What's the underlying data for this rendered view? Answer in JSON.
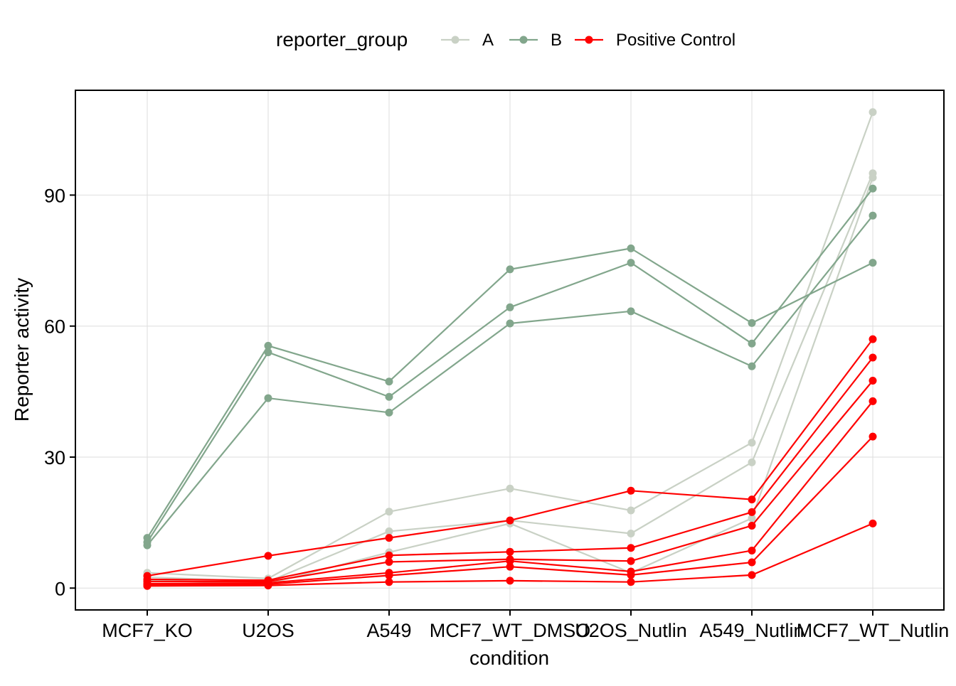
{
  "chart_data": {
    "type": "line",
    "xlabel": "condition",
    "ylabel": "Reporter activity",
    "categories": [
      "MCF7_KO",
      "U2OS",
      "A549",
      "MCF7_WT_DMSO",
      "U2OS_Nutlin",
      "A549_Nutlin",
      "MCF7_WT_Nutlin"
    ],
    "ylim": [
      -5,
      114
    ],
    "yticks": [
      0,
      30,
      60,
      90
    ],
    "grid": true,
    "legend": {
      "title": "reporter_group",
      "position": "top",
      "entries": [
        {
          "label": "A",
          "color": "#C9D1C5"
        },
        {
          "label": "B",
          "color": "#82A68C"
        },
        {
          "label": "Positive Control",
          "color": "#FF0000"
        }
      ]
    },
    "series": [
      {
        "name": "A",
        "group": "A",
        "color": "#C9D1C5",
        "values": [
          3.5,
          2.2,
          17.5,
          22.8,
          17.8,
          33.3,
          109.0
        ]
      },
      {
        "name": "A",
        "group": "A",
        "color": "#C9D1C5",
        "values": [
          2.5,
          1.5,
          13.0,
          15.5,
          12.5,
          28.8,
          95.0
        ]
      },
      {
        "name": "A",
        "group": "A",
        "color": "#C9D1C5",
        "values": [
          1.8,
          1.0,
          8.2,
          14.8,
          3.5,
          16.0,
          94.0
        ]
      },
      {
        "name": "B",
        "group": "B",
        "color": "#82A68C",
        "values": [
          11.5,
          55.5,
          47.3,
          73.0,
          77.8,
          60.7,
          74.5
        ]
      },
      {
        "name": "B",
        "group": "B",
        "color": "#82A68C",
        "values": [
          10.5,
          54.0,
          43.8,
          64.3,
          74.5,
          56.0,
          91.5
        ]
      },
      {
        "name": "B",
        "group": "B",
        "color": "#82A68C",
        "values": [
          9.8,
          43.5,
          40.2,
          60.6,
          63.4,
          50.8,
          85.3
        ]
      },
      {
        "name": "Positive Control",
        "group": "Positive Control",
        "color": "#FF0000",
        "values": [
          2.8,
          7.4,
          11.5,
          15.5,
          22.3,
          20.3,
          57.0
        ]
      },
      {
        "name": "Positive Control",
        "group": "Positive Control",
        "color": "#FF0000",
        "values": [
          2.0,
          1.8,
          7.5,
          8.3,
          9.2,
          17.4,
          52.8
        ]
      },
      {
        "name": "Positive Control",
        "group": "Positive Control",
        "color": "#FF0000",
        "values": [
          1.5,
          1.5,
          6.0,
          6.6,
          6.2,
          14.3,
          47.5
        ]
      },
      {
        "name": "Positive Control",
        "group": "Positive Control",
        "color": "#FF0000",
        "values": [
          1.0,
          1.2,
          3.5,
          6.2,
          3.8,
          8.6,
          42.8
        ]
      },
      {
        "name": "Positive Control",
        "group": "Positive Control",
        "color": "#FF0000",
        "values": [
          0.8,
          0.9,
          2.9,
          4.9,
          3.0,
          5.9,
          34.7
        ]
      },
      {
        "name": "Positive Control",
        "group": "Positive Control",
        "color": "#FF0000",
        "values": [
          0.5,
          0.6,
          1.4,
          1.7,
          1.4,
          3.0,
          14.8
        ]
      }
    ]
  }
}
